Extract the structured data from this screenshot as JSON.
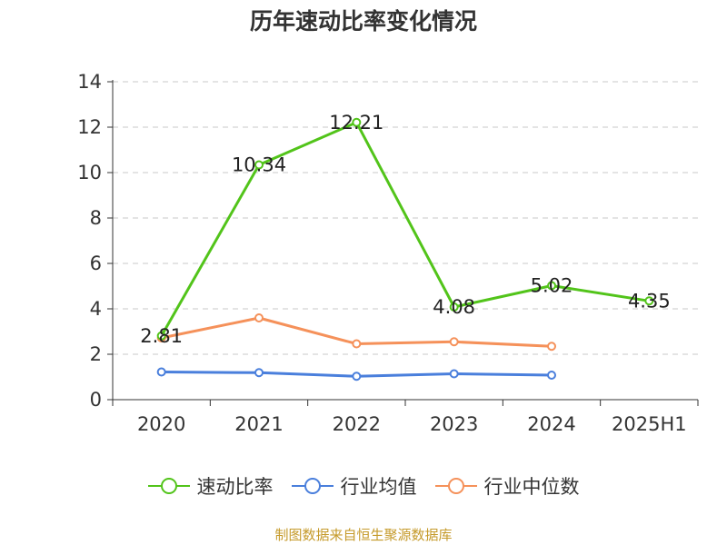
{
  "chart_data": {
    "type": "line",
    "title": "历年速动比率变化情况",
    "categories": [
      "2020",
      "2021",
      "2022",
      "2023",
      "2024",
      "2025H1"
    ],
    "ylim": [
      0,
      14
    ],
    "yticks": [
      0,
      2,
      4,
      6,
      8,
      10,
      12,
      14
    ],
    "grid": true,
    "legend_position": "bottom",
    "series": [
      {
        "name": "速动比率",
        "color": "#52c41a",
        "values": [
          2.81,
          10.34,
          12.21,
          4.08,
          5.02,
          4.35
        ],
        "labels": [
          "2.81",
          "10.34",
          "12.21",
          "4.08",
          "5.02",
          "4.35"
        ]
      },
      {
        "name": "行业均值",
        "color": "#4a7fdc",
        "values": [
          1.22,
          1.19,
          1.03,
          1.14,
          1.08,
          null
        ]
      },
      {
        "name": "行业中位数",
        "color": "#f5915a",
        "values": [
          2.72,
          3.6,
          2.46,
          2.55,
          2.35,
          null
        ]
      }
    ]
  },
  "source_text": "制图数据来自恒生聚源数据库"
}
